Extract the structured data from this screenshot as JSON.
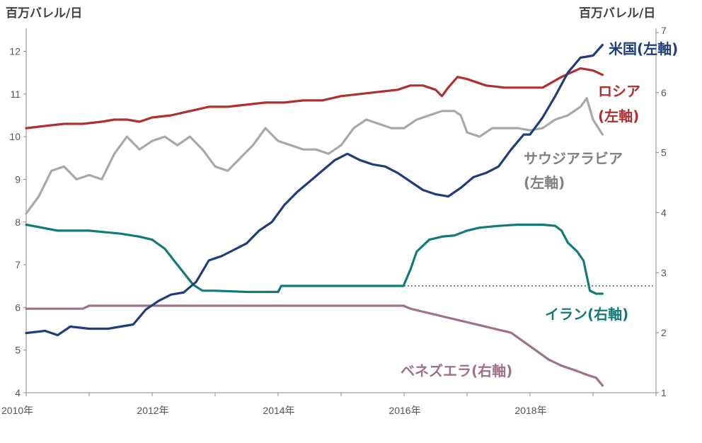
{
  "left_axis_unit": "百万バレル/日",
  "right_axis_unit": "百万バレル/日",
  "labels": {
    "us": "米国(左軸)",
    "russia_1": "ロシア",
    "russia_2": "(左軸)",
    "saudi_1": "サウジアラビア",
    "saudi_2": "(左軸)",
    "iran": "イラン(右軸)",
    "venezuela": "ベネズエラ(右軸)"
  },
  "colors": {
    "us": "#1f3d7a",
    "russia": "#b03030",
    "saudi": "#a8a8a8",
    "iran": "#127a7a",
    "venezuela": "#a0708c",
    "reference_line": "#555555"
  },
  "chart_data": {
    "type": "line",
    "x_axis": {
      "range": [
        2010,
        2020
      ],
      "ticks": [
        2010,
        2012,
        2014,
        2016,
        2018
      ],
      "tick_labels": [
        "2010年",
        "2012年",
        "2014年",
        "2016年",
        "2018年"
      ]
    },
    "y_left": {
      "range": [
        4,
        12.9
      ],
      "ticks": [
        4,
        5,
        6,
        7,
        8,
        9,
        10,
        11,
        12
      ]
    },
    "y_right": {
      "range": [
        1,
        7
      ],
      "ticks": [
        1,
        2,
        3,
        4,
        5,
        6,
        7
      ]
    },
    "grid": false,
    "series": [
      {
        "key": "us",
        "name": "米国(左軸)",
        "axis": "left",
        "x": [
          2010.0,
          2010.3,
          2010.5,
          2010.7,
          2011.0,
          2011.3,
          2011.5,
          2011.7,
          2011.9,
          2012.1,
          2012.3,
          2012.5,
          2012.7,
          2012.9,
          2013.1,
          2013.3,
          2013.5,
          2013.7,
          2013.9,
          2014.1,
          2014.3,
          2014.5,
          2014.7,
          2014.9,
          2015.1,
          2015.3,
          2015.5,
          2015.7,
          2015.9,
          2016.1,
          2016.3,
          2016.5,
          2016.7,
          2016.9,
          2017.1,
          2017.3,
          2017.5,
          2017.7,
          2017.9,
          2018.0,
          2018.2,
          2018.4,
          2018.6,
          2018.8,
          2019.0,
          2019.15
        ],
        "y": [
          5.4,
          5.45,
          5.35,
          5.55,
          5.5,
          5.5,
          5.55,
          5.6,
          5.95,
          6.15,
          6.3,
          6.35,
          6.6,
          7.1,
          7.2,
          7.35,
          7.5,
          7.8,
          8.0,
          8.4,
          8.7,
          8.95,
          9.2,
          9.45,
          9.6,
          9.45,
          9.35,
          9.3,
          9.15,
          8.95,
          8.75,
          8.65,
          8.6,
          8.8,
          9.05,
          9.15,
          9.3,
          9.7,
          10.05,
          10.05,
          10.45,
          10.95,
          11.5,
          11.85,
          11.9,
          12.15
        ]
      },
      {
        "key": "russia",
        "name": "ロシア(左軸)",
        "axis": "left",
        "x": [
          2010.0,
          2010.3,
          2010.6,
          2010.9,
          2011.2,
          2011.4,
          2011.6,
          2011.8,
          2012.0,
          2012.3,
          2012.6,
          2012.9,
          2013.2,
          2013.5,
          2013.8,
          2014.1,
          2014.4,
          2014.7,
          2015.0,
          2015.3,
          2015.6,
          2015.9,
          2016.1,
          2016.3,
          2016.5,
          2016.6,
          2016.7,
          2016.85,
          2017.0,
          2017.3,
          2017.6,
          2017.9,
          2018.2,
          2018.5,
          2018.8,
          2019.0,
          2019.15
        ],
        "y": [
          10.2,
          10.25,
          10.3,
          10.3,
          10.35,
          10.4,
          10.4,
          10.35,
          10.45,
          10.5,
          10.6,
          10.7,
          10.7,
          10.75,
          10.8,
          10.8,
          10.85,
          10.85,
          10.95,
          11.0,
          11.05,
          11.1,
          11.2,
          11.2,
          11.1,
          10.95,
          11.15,
          11.4,
          11.35,
          11.2,
          11.15,
          11.15,
          11.15,
          11.4,
          11.6,
          11.55,
          11.45
        ]
      },
      {
        "key": "saudi",
        "name": "サウジアラビア(左軸)",
        "axis": "left",
        "x": [
          2010.0,
          2010.2,
          2010.4,
          2010.6,
          2010.8,
          2011.0,
          2011.2,
          2011.4,
          2011.6,
          2011.8,
          2012.0,
          2012.2,
          2012.4,
          2012.6,
          2012.8,
          2013.0,
          2013.2,
          2013.4,
          2013.6,
          2013.8,
          2014.0,
          2014.2,
          2014.4,
          2014.6,
          2014.8,
          2015.0,
          2015.2,
          2015.4,
          2015.6,
          2015.8,
          2016.0,
          2016.2,
          2016.4,
          2016.6,
          2016.8,
          2016.9,
          2017.0,
          2017.2,
          2017.4,
          2017.6,
          2017.8,
          2018.0,
          2018.2,
          2018.4,
          2018.6,
          2018.8,
          2018.9,
          2019.0,
          2019.15
        ],
        "y": [
          8.2,
          8.6,
          9.2,
          9.3,
          9.0,
          9.1,
          9.0,
          9.6,
          10.0,
          9.7,
          9.9,
          10.0,
          9.8,
          10.0,
          9.7,
          9.3,
          9.2,
          9.5,
          9.8,
          10.2,
          9.9,
          9.8,
          9.7,
          9.7,
          9.6,
          9.8,
          10.2,
          10.4,
          10.3,
          10.2,
          10.2,
          10.4,
          10.5,
          10.6,
          10.6,
          10.5,
          10.1,
          10.0,
          10.2,
          10.2,
          10.2,
          10.15,
          10.2,
          10.4,
          10.5,
          10.7,
          10.9,
          10.4,
          10.05
        ]
      },
      {
        "key": "iran",
        "name": "イラン(右軸)",
        "axis": "right",
        "x": [
          2010.0,
          2010.5,
          2011.0,
          2011.5,
          2011.8,
          2012.0,
          2012.2,
          2012.35,
          2012.5,
          2012.65,
          2012.8,
          2013.0,
          2013.5,
          2014.0,
          2014.05,
          2015.0,
          2015.5,
          2015.99,
          2016.1,
          2016.2,
          2016.4,
          2016.6,
          2016.8,
          2017.0,
          2017.2,
          2017.5,
          2017.8,
          2018.0,
          2018.2,
          2018.4,
          2018.5,
          2018.6,
          2018.75,
          2018.85,
          2018.95,
          2019.05,
          2019.15
        ],
        "y": [
          3.8,
          3.7,
          3.7,
          3.65,
          3.6,
          3.55,
          3.4,
          3.2,
          3.0,
          2.8,
          2.7,
          2.7,
          2.68,
          2.68,
          2.78,
          2.78,
          2.78,
          2.78,
          3.05,
          3.35,
          3.55,
          3.6,
          3.62,
          3.7,
          3.75,
          3.78,
          3.8,
          3.8,
          3.8,
          3.78,
          3.7,
          3.5,
          3.35,
          3.2,
          2.7,
          2.65,
          2.65
        ]
      },
      {
        "key": "venezuela",
        "name": "ベネズエラ(右軸)",
        "axis": "right",
        "x": [
          2010.0,
          2010.5,
          2010.9,
          2011.0,
          2011.5,
          2012.0,
          2012.5,
          2013.0,
          2013.5,
          2014.0,
          2014.5,
          2015.0,
          2015.5,
          2015.99,
          2016.1,
          2016.3,
          2016.5,
          2016.7,
          2016.9,
          2017.1,
          2017.3,
          2017.5,
          2017.7,
          2017.9,
          2018.1,
          2018.3,
          2018.5,
          2018.7,
          2018.9,
          2019.05,
          2019.15
        ],
        "y": [
          2.4,
          2.4,
          2.4,
          2.45,
          2.45,
          2.45,
          2.45,
          2.45,
          2.45,
          2.45,
          2.45,
          2.45,
          2.45,
          2.45,
          2.4,
          2.35,
          2.3,
          2.25,
          2.2,
          2.15,
          2.1,
          2.05,
          2.0,
          1.85,
          1.7,
          1.55,
          1.45,
          1.38,
          1.3,
          1.25,
          1.12
        ]
      }
    ],
    "reference_line": {
      "axis": "right",
      "y": 2.78,
      "x_from": 2016.0,
      "x_to": 2019.95,
      "style": "dotted"
    }
  }
}
